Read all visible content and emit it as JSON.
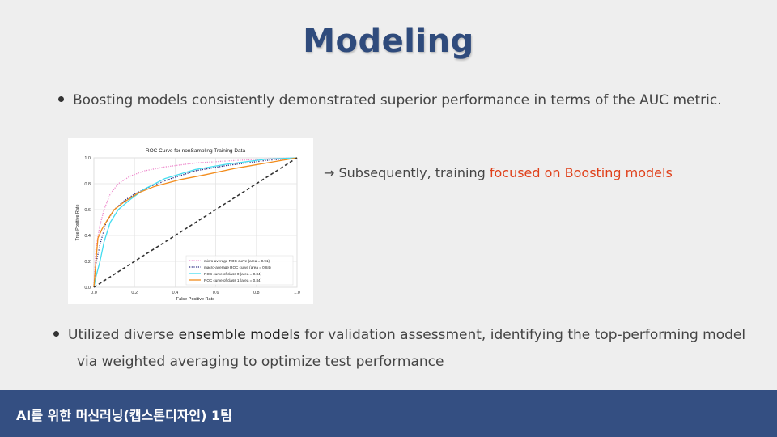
{
  "slide": {
    "title": "Modeling",
    "bullet1": "Boosting models consistently demonstrated superior performance in terms of the AUC metric.",
    "arrow_prefix": "→ Subsequently, training ",
    "arrow_highlight": "focused on Boosting models",
    "bullet2_pre": "Utilized diverse ",
    "bullet2_em": "ensemble models",
    "bullet2_post": " for validation assessment, identifying the top-performing model",
    "bullet2_line2": "via weighted averaging to optimize test performance",
    "footer": "AI를 위한 머신러닝(캡스톤디자인) 1팀",
    "colors": {
      "title": "#2f4b7c",
      "highlight": "#e0401a",
      "footer_bg": "#344f82",
      "background": "#eeeeee"
    }
  },
  "chart_data": {
    "type": "line",
    "title": "ROC Curve for nonSampling Training Data",
    "xlabel": "False Positive Rate",
    "ylabel": "True Positive Rate",
    "xlim": [
      0,
      1
    ],
    "ylim": [
      0,
      1
    ],
    "xticks": [
      "0.0",
      "0.2",
      "0.4",
      "0.6",
      "0.8",
      "1.0"
    ],
    "yticks": [
      "0.0",
      "0.2",
      "0.4",
      "0.6",
      "0.8",
      "1.0"
    ],
    "grid": true,
    "legend_position": "bottom-right",
    "series": [
      {
        "name": "micro-average ROC curve (area = 0.91)",
        "color": "#ee88cc",
        "style": "dotted",
        "x": [
          0,
          0.01,
          0.03,
          0.05,
          0.08,
          0.12,
          0.18,
          0.25,
          0.35,
          0.5,
          0.7,
          0.9,
          1.0
        ],
        "y": [
          0,
          0.3,
          0.48,
          0.6,
          0.72,
          0.8,
          0.86,
          0.9,
          0.93,
          0.96,
          0.98,
          0.995,
          1.0
        ]
      },
      {
        "name": "macro-average ROC curve (area = 0.84)",
        "color": "#2a2a80",
        "style": "dotted",
        "x": [
          0,
          0.01,
          0.03,
          0.06,
          0.1,
          0.15,
          0.2,
          0.28,
          0.38,
          0.5,
          0.65,
          0.85,
          1.0
        ],
        "y": [
          0,
          0.18,
          0.33,
          0.5,
          0.6,
          0.67,
          0.72,
          0.78,
          0.84,
          0.9,
          0.94,
          0.98,
          1.0
        ]
      },
      {
        "name": "ROC curve of class 0 (area = 0.84)",
        "color": "#44ddf0",
        "style": "solid",
        "x": [
          0,
          0.01,
          0.03,
          0.05,
          0.08,
          0.12,
          0.18,
          0.25,
          0.35,
          0.5,
          0.65,
          0.85,
          1.0
        ],
        "y": [
          0,
          0.08,
          0.2,
          0.35,
          0.5,
          0.6,
          0.68,
          0.76,
          0.84,
          0.91,
          0.95,
          0.99,
          1.0
        ]
      },
      {
        "name": "ROC curve of class 1 (area = 0.84)",
        "color": "#f28c1c",
        "style": "solid",
        "x": [
          0,
          0.01,
          0.02,
          0.04,
          0.07,
          0.1,
          0.15,
          0.22,
          0.3,
          0.42,
          0.55,
          0.7,
          0.85,
          1.0
        ],
        "y": [
          0,
          0.2,
          0.38,
          0.45,
          0.53,
          0.6,
          0.66,
          0.73,
          0.78,
          0.83,
          0.87,
          0.92,
          0.96,
          1.0
        ]
      },
      {
        "name": "",
        "color": "#333333",
        "style": "dashed",
        "x": [
          0,
          1
        ],
        "y": [
          0,
          1
        ]
      }
    ]
  }
}
